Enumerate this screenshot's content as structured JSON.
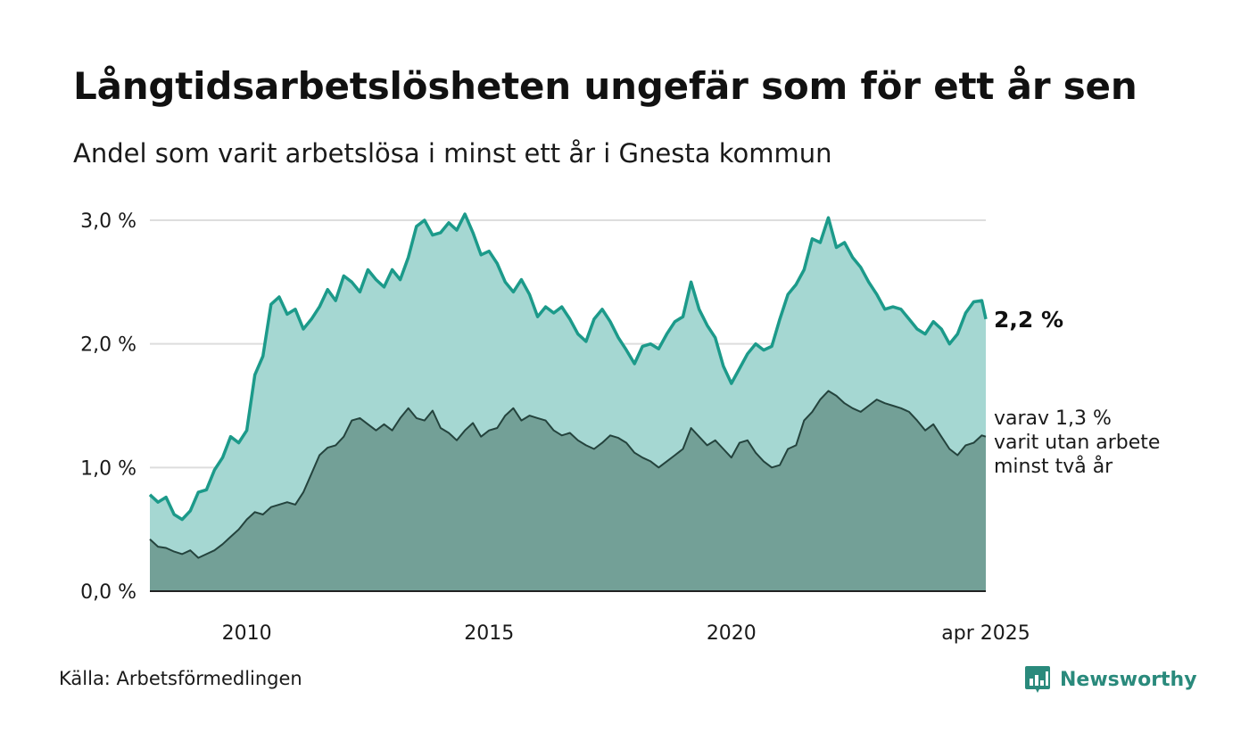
{
  "title": "Långtidsarbetslösheten ungefär som för ett år sen",
  "subtitle": "Andel som varit arbetslösa i minst ett år i Gnesta kommun",
  "source": "Källa: Arbetsförmedlingen",
  "brand": {
    "name": "Newsworthy",
    "logo_icon": "bar-chart-speech-bubble-icon"
  },
  "colors": {
    "long_line": "#1c9a8a",
    "long_fill": "#a5d7d2",
    "short_line": "#24433d",
    "short_fill": "#73a097",
    "grid": "#dddddd",
    "brand": "#2a8a7c"
  },
  "chart_data": {
    "type": "area",
    "x_start": "2008-01",
    "x_end": "2025-04",
    "x_ticks": [
      {
        "label": "2010",
        "date": "2010-01"
      },
      {
        "label": "2015",
        "date": "2015-01"
      },
      {
        "label": "2020",
        "date": "2020-01"
      },
      {
        "label": "apr 2025",
        "date": "2025-04"
      }
    ],
    "y_ticks": [
      "0,0 %",
      "1,0 %",
      "2,0 %",
      "3,0 %"
    ],
    "ylim": [
      0,
      3.0
    ],
    "grid": true,
    "series": [
      {
        "key": "long",
        "end_label": "2,2 %",
        "points": [
          [
            "2008-01",
            0.78
          ],
          [
            "2008-03",
            0.72
          ],
          [
            "2008-05",
            0.76
          ],
          [
            "2008-07",
            0.62
          ],
          [
            "2008-09",
            0.58
          ],
          [
            "2008-11",
            0.65
          ],
          [
            "2009-01",
            0.8
          ],
          [
            "2009-03",
            0.82
          ],
          [
            "2009-05",
            0.98
          ],
          [
            "2009-07",
            1.08
          ],
          [
            "2009-09",
            1.25
          ],
          [
            "2009-11",
            1.2
          ],
          [
            "2010-01",
            1.3
          ],
          [
            "2010-03",
            1.75
          ],
          [
            "2010-05",
            1.9
          ],
          [
            "2010-07",
            2.32
          ],
          [
            "2010-09",
            2.38
          ],
          [
            "2010-11",
            2.24
          ],
          [
            "2011-01",
            2.28
          ],
          [
            "2011-03",
            2.12
          ],
          [
            "2011-05",
            2.2
          ],
          [
            "2011-07",
            2.3
          ],
          [
            "2011-09",
            2.44
          ],
          [
            "2011-11",
            2.35
          ],
          [
            "2012-01",
            2.55
          ],
          [
            "2012-03",
            2.5
          ],
          [
            "2012-05",
            2.42
          ],
          [
            "2012-07",
            2.6
          ],
          [
            "2012-09",
            2.52
          ],
          [
            "2012-11",
            2.46
          ],
          [
            "2013-01",
            2.6
          ],
          [
            "2013-03",
            2.52
          ],
          [
            "2013-05",
            2.7
          ],
          [
            "2013-07",
            2.95
          ],
          [
            "2013-09",
            3.0
          ],
          [
            "2013-11",
            2.88
          ],
          [
            "2014-01",
            2.9
          ],
          [
            "2014-03",
            2.98
          ],
          [
            "2014-05",
            2.92
          ],
          [
            "2014-07",
            3.05
          ],
          [
            "2014-09",
            2.9
          ],
          [
            "2014-11",
            2.72
          ],
          [
            "2015-01",
            2.75
          ],
          [
            "2015-03",
            2.65
          ],
          [
            "2015-05",
            2.5
          ],
          [
            "2015-07",
            2.42
          ],
          [
            "2015-09",
            2.52
          ],
          [
            "2015-11",
            2.4
          ],
          [
            "2016-01",
            2.22
          ],
          [
            "2016-03",
            2.3
          ],
          [
            "2016-05",
            2.25
          ],
          [
            "2016-07",
            2.3
          ],
          [
            "2016-09",
            2.2
          ],
          [
            "2016-11",
            2.08
          ],
          [
            "2017-01",
            2.02
          ],
          [
            "2017-03",
            2.2
          ],
          [
            "2017-05",
            2.28
          ],
          [
            "2017-07",
            2.18
          ],
          [
            "2017-09",
            2.05
          ],
          [
            "2017-11",
            1.95
          ],
          [
            "2018-01",
            1.84
          ],
          [
            "2018-03",
            1.98
          ],
          [
            "2018-05",
            2.0
          ],
          [
            "2018-07",
            1.96
          ],
          [
            "2018-09",
            2.08
          ],
          [
            "2018-11",
            2.18
          ],
          [
            "2019-01",
            2.22
          ],
          [
            "2019-03",
            2.5
          ],
          [
            "2019-05",
            2.28
          ],
          [
            "2019-07",
            2.15
          ],
          [
            "2019-09",
            2.05
          ],
          [
            "2019-11",
            1.82
          ],
          [
            "2020-01",
            1.68
          ],
          [
            "2020-03",
            1.8
          ],
          [
            "2020-05",
            1.92
          ],
          [
            "2020-07",
            2.0
          ],
          [
            "2020-09",
            1.95
          ],
          [
            "2020-11",
            1.98
          ],
          [
            "2021-01",
            2.2
          ],
          [
            "2021-03",
            2.4
          ],
          [
            "2021-05",
            2.48
          ],
          [
            "2021-07",
            2.6
          ],
          [
            "2021-09",
            2.85
          ],
          [
            "2021-11",
            2.82
          ],
          [
            "2022-01",
            3.02
          ],
          [
            "2022-03",
            2.78
          ],
          [
            "2022-05",
            2.82
          ],
          [
            "2022-07",
            2.7
          ],
          [
            "2022-09",
            2.62
          ],
          [
            "2022-11",
            2.5
          ],
          [
            "2023-01",
            2.4
          ],
          [
            "2023-03",
            2.28
          ],
          [
            "2023-05",
            2.3
          ],
          [
            "2023-07",
            2.28
          ],
          [
            "2023-09",
            2.2
          ],
          [
            "2023-11",
            2.12
          ],
          [
            "2024-01",
            2.08
          ],
          [
            "2024-03",
            2.18
          ],
          [
            "2024-05",
            2.12
          ],
          [
            "2024-07",
            2.0
          ],
          [
            "2024-09",
            2.08
          ],
          [
            "2024-11",
            2.25
          ],
          [
            "2025-01",
            2.34
          ],
          [
            "2025-03",
            2.35
          ],
          [
            "2025-04",
            2.2
          ]
        ]
      },
      {
        "key": "short",
        "end_label": [
          "varav 1,3 %",
          "varit utan arbete",
          "minst två år"
        ],
        "points": [
          [
            "2008-01",
            0.42
          ],
          [
            "2008-03",
            0.36
          ],
          [
            "2008-05",
            0.35
          ],
          [
            "2008-07",
            0.32
          ],
          [
            "2008-09",
            0.3
          ],
          [
            "2008-11",
            0.33
          ],
          [
            "2009-01",
            0.27
          ],
          [
            "2009-03",
            0.3
          ],
          [
            "2009-05",
            0.33
          ],
          [
            "2009-07",
            0.38
          ],
          [
            "2009-09",
            0.44
          ],
          [
            "2009-11",
            0.5
          ],
          [
            "2010-01",
            0.58
          ],
          [
            "2010-03",
            0.64
          ],
          [
            "2010-05",
            0.62
          ],
          [
            "2010-07",
            0.68
          ],
          [
            "2010-09",
            0.7
          ],
          [
            "2010-11",
            0.72
          ],
          [
            "2011-01",
            0.7
          ],
          [
            "2011-03",
            0.8
          ],
          [
            "2011-05",
            0.95
          ],
          [
            "2011-07",
            1.1
          ],
          [
            "2011-09",
            1.16
          ],
          [
            "2011-11",
            1.18
          ],
          [
            "2012-01",
            1.25
          ],
          [
            "2012-03",
            1.38
          ],
          [
            "2012-05",
            1.4
          ],
          [
            "2012-07",
            1.35
          ],
          [
            "2012-09",
            1.3
          ],
          [
            "2012-11",
            1.35
          ],
          [
            "2013-01",
            1.3
          ],
          [
            "2013-03",
            1.4
          ],
          [
            "2013-05",
            1.48
          ],
          [
            "2013-07",
            1.4
          ],
          [
            "2013-09",
            1.38
          ],
          [
            "2013-11",
            1.46
          ],
          [
            "2014-01",
            1.32
          ],
          [
            "2014-03",
            1.28
          ],
          [
            "2014-05",
            1.22
          ],
          [
            "2014-07",
            1.3
          ],
          [
            "2014-09",
            1.36
          ],
          [
            "2014-11",
            1.25
          ],
          [
            "2015-01",
            1.3
          ],
          [
            "2015-03",
            1.32
          ],
          [
            "2015-05",
            1.42
          ],
          [
            "2015-07",
            1.48
          ],
          [
            "2015-09",
            1.38
          ],
          [
            "2015-11",
            1.42
          ],
          [
            "2016-01",
            1.4
          ],
          [
            "2016-03",
            1.38
          ],
          [
            "2016-05",
            1.3
          ],
          [
            "2016-07",
            1.26
          ],
          [
            "2016-09",
            1.28
          ],
          [
            "2016-11",
            1.22
          ],
          [
            "2017-01",
            1.18
          ],
          [
            "2017-03",
            1.15
          ],
          [
            "2017-05",
            1.2
          ],
          [
            "2017-07",
            1.26
          ],
          [
            "2017-09",
            1.24
          ],
          [
            "2017-11",
            1.2
          ],
          [
            "2018-01",
            1.12
          ],
          [
            "2018-03",
            1.08
          ],
          [
            "2018-05",
            1.05
          ],
          [
            "2018-07",
            1.0
          ],
          [
            "2018-09",
            1.05
          ],
          [
            "2018-11",
            1.1
          ],
          [
            "2019-01",
            1.15
          ],
          [
            "2019-03",
            1.32
          ],
          [
            "2019-05",
            1.25
          ],
          [
            "2019-07",
            1.18
          ],
          [
            "2019-09",
            1.22
          ],
          [
            "2019-11",
            1.15
          ],
          [
            "2020-01",
            1.08
          ],
          [
            "2020-03",
            1.2
          ],
          [
            "2020-05",
            1.22
          ],
          [
            "2020-07",
            1.12
          ],
          [
            "2020-09",
            1.05
          ],
          [
            "2020-11",
            1.0
          ],
          [
            "2021-01",
            1.02
          ],
          [
            "2021-03",
            1.15
          ],
          [
            "2021-05",
            1.18
          ],
          [
            "2021-07",
            1.38
          ],
          [
            "2021-09",
            1.45
          ],
          [
            "2021-11",
            1.55
          ],
          [
            "2022-01",
            1.62
          ],
          [
            "2022-03",
            1.58
          ],
          [
            "2022-05",
            1.52
          ],
          [
            "2022-07",
            1.48
          ],
          [
            "2022-09",
            1.45
          ],
          [
            "2022-11",
            1.5
          ],
          [
            "2023-01",
            1.55
          ],
          [
            "2023-03",
            1.52
          ],
          [
            "2023-05",
            1.5
          ],
          [
            "2023-07",
            1.48
          ],
          [
            "2023-09",
            1.45
          ],
          [
            "2023-11",
            1.38
          ],
          [
            "2024-01",
            1.3
          ],
          [
            "2024-03",
            1.35
          ],
          [
            "2024-05",
            1.25
          ],
          [
            "2024-07",
            1.15
          ],
          [
            "2024-09",
            1.1
          ],
          [
            "2024-11",
            1.18
          ],
          [
            "2025-01",
            1.2
          ],
          [
            "2025-03",
            1.26
          ],
          [
            "2025-04",
            1.25
          ]
        ]
      }
    ]
  }
}
